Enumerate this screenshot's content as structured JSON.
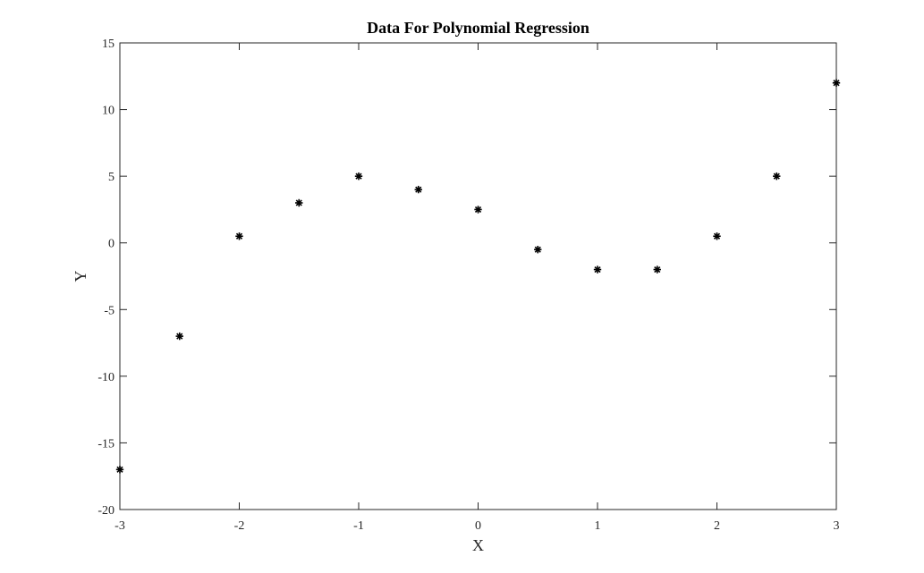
{
  "chart_data": {
    "type": "scatter",
    "title": "Data For Polynomial Regression",
    "xlabel": "X",
    "ylabel": "Y",
    "xlim": [
      -3,
      3
    ],
    "ylim": [
      -20,
      15
    ],
    "xticks": [
      -3,
      -2,
      -1,
      0,
      1,
      2,
      3
    ],
    "yticks": [
      -20,
      -15,
      -10,
      -5,
      0,
      5,
      10,
      15
    ],
    "xtick_labels": [
      "-3",
      "-2",
      "-1",
      "0",
      "1",
      "2",
      "3"
    ],
    "ytick_labels": [
      "-20",
      "-15",
      "-10",
      "-5",
      "0",
      "5",
      "10",
      "15"
    ],
    "grid": false,
    "marker": "asterisk",
    "marker_color": "#000000",
    "series": [
      {
        "x": [
          -3,
          -2.5,
          -2,
          -1.5,
          -1,
          -0.5,
          0,
          0.5,
          1,
          1.5,
          2,
          2.5,
          3
        ],
        "y": [
          -17,
          -7,
          0.5,
          3,
          5,
          4,
          2.5,
          -0.5,
          -2,
          -2,
          0.5,
          5,
          12
        ]
      }
    ]
  }
}
